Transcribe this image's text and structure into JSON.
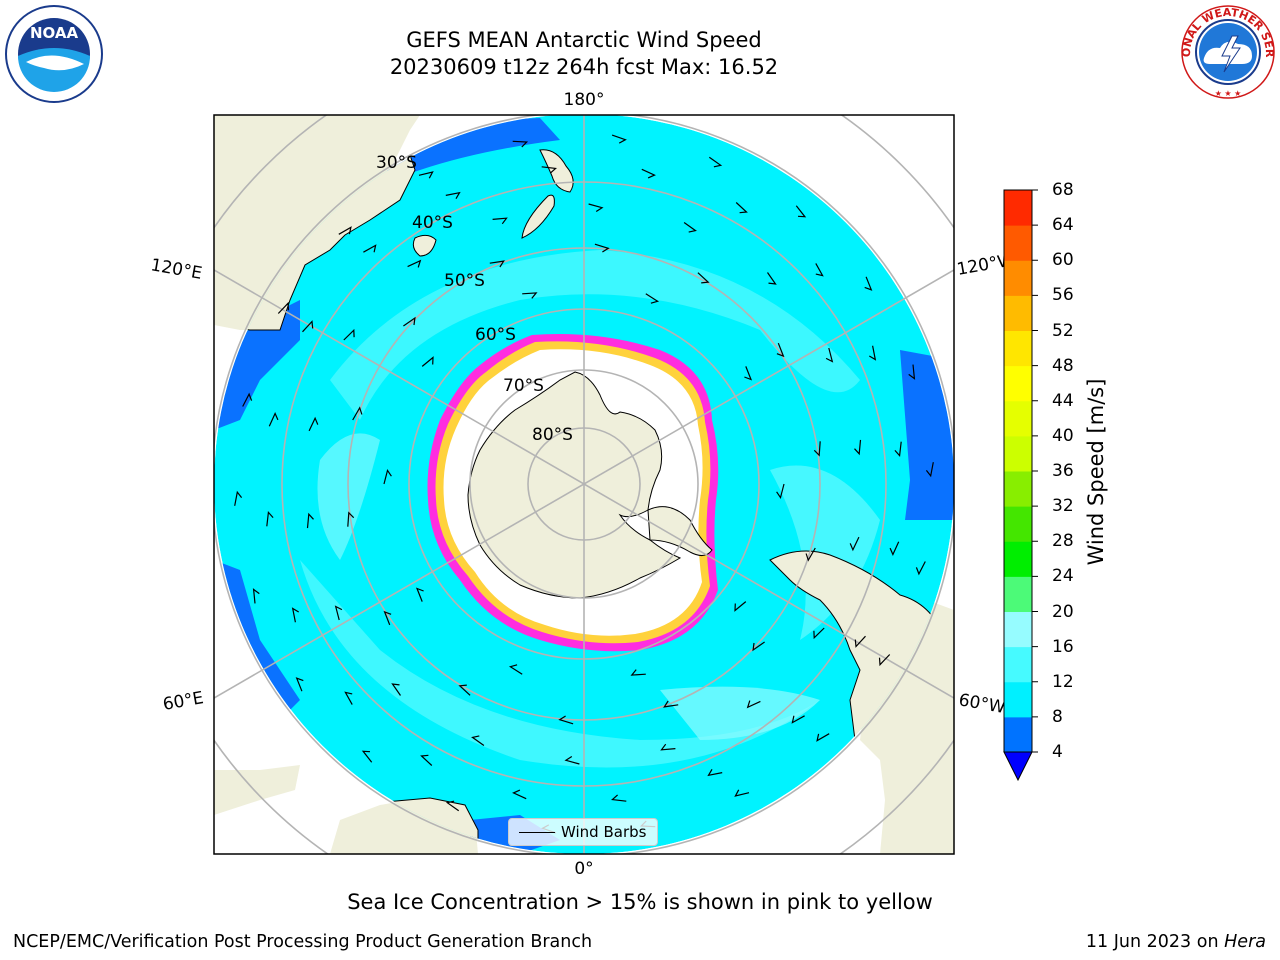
{
  "header": {
    "title_line1": "GEFS MEAN Antarctic Wind Speed",
    "title_line2": "20230609 t12z 264h fcst   Max: 16.52"
  },
  "map": {
    "projection": "south-polar-stereographic",
    "longitude_labels": [
      "180°",
      "120°E",
      "120°W",
      "60°E",
      "60°W",
      "0°"
    ],
    "latitude_labels": [
      "30°S",
      "40°S",
      "50°S",
      "60°S",
      "70°S",
      "80°S"
    ],
    "colors": {
      "land": "#efefdb",
      "ocean_deep": "#0a72ff",
      "ocean_8_12": "#00f3ff",
      "ocean_12_16": "#46f8ff",
      "ocean_16_20": "#90fbff",
      "sea_ice": "#ffffff",
      "ice_edge_pink": "#ff2de0",
      "ice_edge_yellow": "#ffd23c",
      "gridline": "#b4b4b4"
    }
  },
  "colorbar": {
    "label": "Wind Speed [m/s]",
    "ticks": [
      "68",
      "64",
      "60",
      "56",
      "52",
      "48",
      "44",
      "40",
      "36",
      "32",
      "28",
      "24",
      "20",
      "16",
      "12",
      "8",
      "4"
    ],
    "colors_bottom_to_top": [
      "#0073ff",
      "#00f0ff",
      "#46faff",
      "#96fcff",
      "#4cfa78",
      "#00ee00",
      "#44e600",
      "#88ee00",
      "#ccff00",
      "#e5ff00",
      "#ffff00",
      "#ffe600",
      "#ffbb00",
      "#ff8c00",
      "#ff5a00",
      "#ff2a00",
      "#ff0000"
    ],
    "under_color": "#0000ff"
  },
  "legend": {
    "label": "Wind Barbs"
  },
  "notes": {
    "sea_ice": "Sea Ice Concentration > 15% is shown in pink to yellow"
  },
  "footer": {
    "left": "NCEP/EMC/Verification Post Processing Product Generation Branch",
    "date": "11 Jun 2023 on",
    "host": "Hera"
  },
  "logos": {
    "noaa_text": "NOAA",
    "nws_text": "NATIONAL WEATHER SERVICE"
  }
}
